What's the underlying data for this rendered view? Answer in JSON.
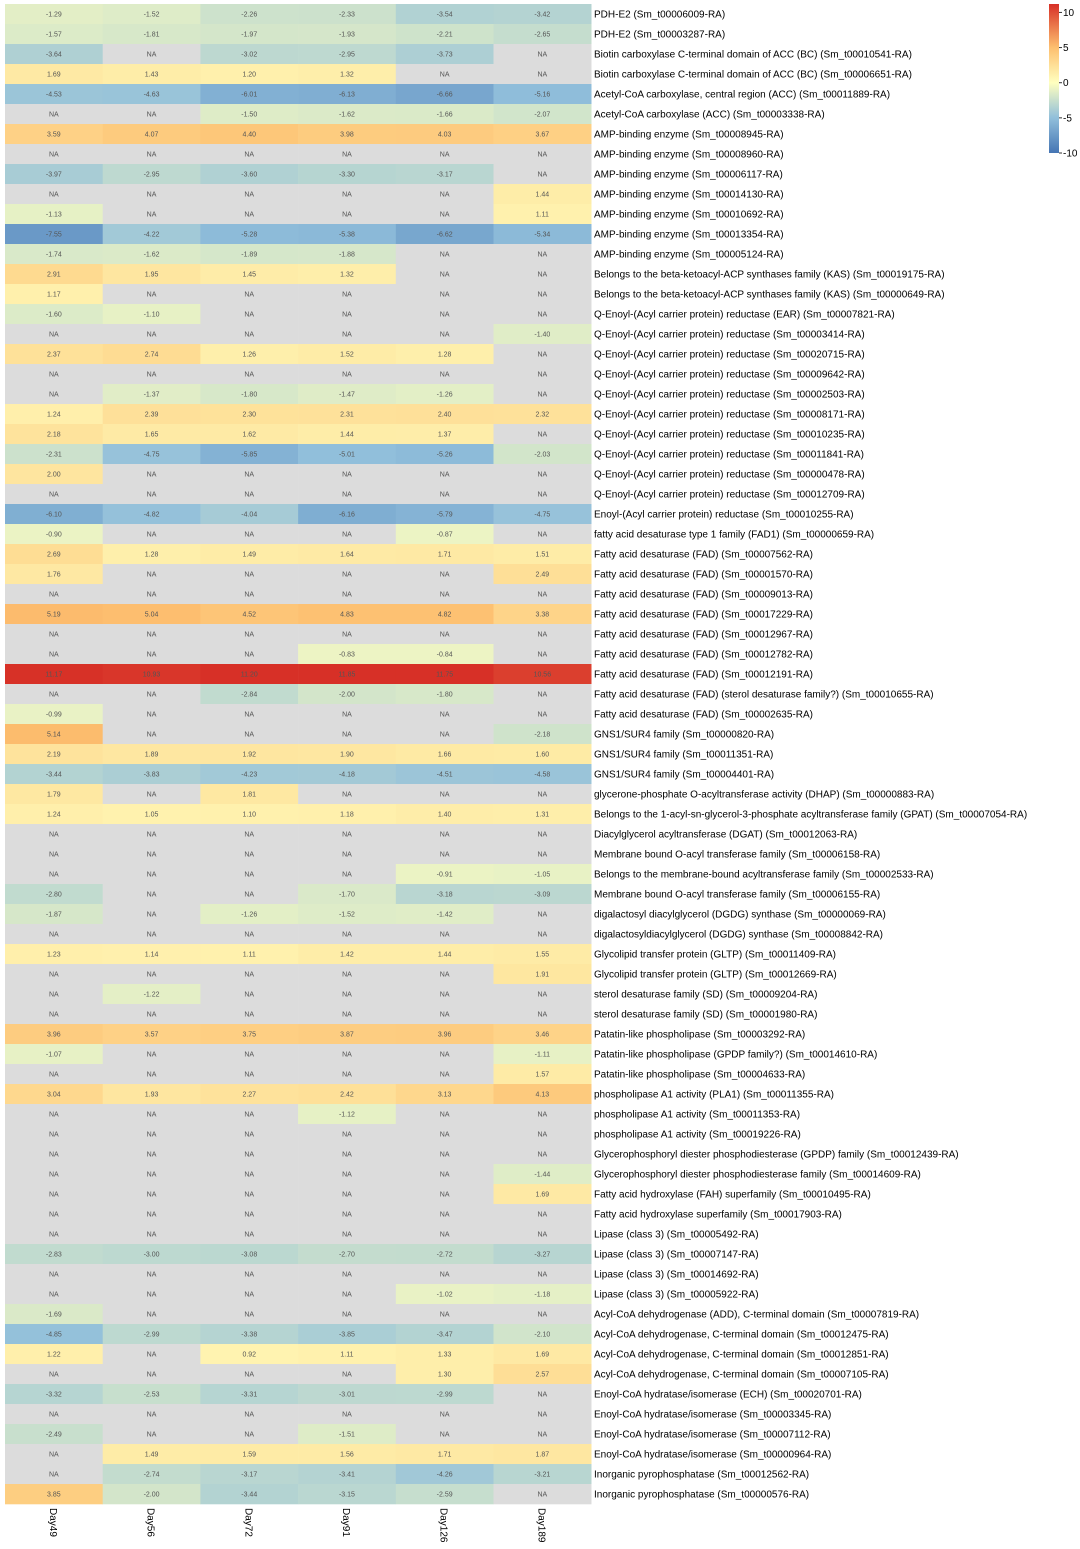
{
  "chart_data": {
    "type": "heatmap",
    "title": "",
    "xlabel": "",
    "ylabel": "",
    "columns": [
      "Day49",
      "Day56",
      "Day72",
      "Day91",
      "Day126",
      "Day189"
    ],
    "na_text": "NA",
    "na_color": "#dcdcdc",
    "color_scale": {
      "range": [
        -10,
        11.2
      ],
      "stops": [
        {
          "value": -10,
          "color": "#4575b4"
        },
        {
          "value": -5,
          "color": "#91bfdb"
        },
        {
          "value": 0,
          "color": "#ffffbf"
        },
        {
          "value": 5,
          "color": "#fdbf6f"
        },
        {
          "value": 11.2,
          "color": "#d73027"
        }
      ],
      "ticks": [
        "10",
        "5",
        "0",
        "-5",
        "-10"
      ]
    },
    "rows": [
      {
        "label": "PDH-E2 (Sm_t00006009-RA)",
        "values": [
          "-1.29",
          "-1.52",
          "-2.26",
          "-2.33",
          "-3.54",
          "-3.42"
        ]
      },
      {
        "label": "PDH-E2 (Sm_t00003287-RA)",
        "values": [
          "-1.57",
          "-1.81",
          "-1.97",
          "-1.93",
          "-2.21",
          "-2.65"
        ]
      },
      {
        "label": "Biotin carboxylase C-terminal domain of ACC (BC) (Sm_t00010541-RA)",
        "values": [
          "-3.64",
          "NA",
          "-3.02",
          "-2.95",
          "-3.73",
          "NA"
        ]
      },
      {
        "label": "Biotin carboxylase C-terminal domain of ACC (BC) (Sm_t00006651-RA)",
        "values": [
          "1.69",
          "1.43",
          "1.20",
          "1.32",
          "NA",
          "NA"
        ]
      },
      {
        "label": "Acetyl-CoA carboxylase, central region (ACC) (Sm_t00011889-RA)",
        "values": [
          "-4.53",
          "-4.63",
          "-6.01",
          "-6.13",
          "-6.66",
          "-5.16"
        ]
      },
      {
        "label": "Acetyl-CoA carboxylase (ACC) (Sm_t00003338-RA)",
        "values": [
          "NA",
          "NA",
          "-1.50",
          "-1.62",
          "-1.66",
          "-2.07"
        ]
      },
      {
        "label": "AMP-binding enzyme (Sm_t00008945-RA)",
        "values": [
          "3.59",
          "4.07",
          "4.40",
          "3.98",
          "4.03",
          "3.67"
        ]
      },
      {
        "label": "AMP-binding enzyme (Sm_t00008960-RA)",
        "values": [
          "NA",
          "NA",
          "NA",
          "NA",
          "NA",
          "NA"
        ]
      },
      {
        "label": "AMP-binding enzyme (Sm_t00006117-RA)",
        "values": [
          "-3.97",
          "-2.95",
          "-3.60",
          "-3.30",
          "-3.17",
          "NA"
        ]
      },
      {
        "label": "AMP-binding enzyme (Sm_t00014130-RA)",
        "values": [
          "NA",
          "NA",
          "NA",
          "NA",
          "NA",
          "1.44"
        ]
      },
      {
        "label": "AMP-binding enzyme (Sm_t00010692-RA)",
        "values": [
          "-1.13",
          "NA",
          "NA",
          "NA",
          "NA",
          "1.11"
        ]
      },
      {
        "label": "AMP-binding enzyme (Sm_t00013354-RA)",
        "values": [
          "-7.55",
          "-4.22",
          "-5.28",
          "-5.38",
          "-6.62",
          "-5.34"
        ]
      },
      {
        "label": "AMP-binding enzyme (Sm_t00005124-RA)",
        "values": [
          "-1.74",
          "-1.62",
          "-1.89",
          "-1.88",
          "NA",
          "NA"
        ]
      },
      {
        "label": "Belongs to the beta-ketoacyl-ACP synthases family (KAS) (Sm_t00019175-RA)",
        "values": [
          "2.91",
          "1.95",
          "1.45",
          "1.32",
          "NA",
          "NA"
        ]
      },
      {
        "label": "Belongs to the beta-ketoacyl-ACP synthases family (KAS) (Sm_t00000649-RA)",
        "values": [
          "1.17",
          "NA",
          "NA",
          "NA",
          "NA",
          "NA"
        ]
      },
      {
        "label": "Q-Enoyl-(Acyl carrier protein) reductase (EAR) (Sm_t00007821-RA)",
        "values": [
          "-1.60",
          "-1.10",
          "NA",
          "NA",
          "NA",
          "NA"
        ]
      },
      {
        "label": "Q-Enoyl-(Acyl carrier protein) reductase (Sm_t00003414-RA)",
        "values": [
          "NA",
          "NA",
          "NA",
          "NA",
          "NA",
          "-1.40"
        ]
      },
      {
        "label": "Q-Enoyl-(Acyl carrier protein) reductase (Sm_t00020715-RA)",
        "values": [
          "2.37",
          "2.74",
          "1.26",
          "1.52",
          "1.28",
          "NA"
        ]
      },
      {
        "label": "Q-Enoyl-(Acyl carrier protein) reductase (Sm_t00009642-RA)",
        "values": [
          "NA",
          "NA",
          "NA",
          "NA",
          "NA",
          "NA"
        ]
      },
      {
        "label": "Q-Enoyl-(Acyl carrier protein) reductase (Sm_t00002503-RA)",
        "values": [
          "NA",
          "-1.37",
          "-1.80",
          "-1.47",
          "-1.26",
          "NA"
        ]
      },
      {
        "label": "Q-Enoyl-(Acyl carrier protein) reductase (Sm_t00008171-RA)",
        "values": [
          "1.24",
          "2.39",
          "2.30",
          "2.31",
          "2.40",
          "2.32"
        ]
      },
      {
        "label": "Q-Enoyl-(Acyl carrier protein) reductase (Sm_t00010235-RA)",
        "values": [
          "2.18",
          "1.65",
          "1.62",
          "1.44",
          "1.37",
          "NA"
        ]
      },
      {
        "label": "Q-Enoyl-(Acyl carrier protein) reductase (Sm_t00011841-RA)",
        "values": [
          "-2.31",
          "-4.75",
          "-5.85",
          "-5.01",
          "-5.26",
          "-2.03"
        ]
      },
      {
        "label": "Q-Enoyl-(Acyl carrier protein) reductase (Sm_t00000478-RA)",
        "values": [
          "2.00",
          "NA",
          "NA",
          "NA",
          "NA",
          "NA"
        ]
      },
      {
        "label": "Q-Enoyl-(Acyl carrier protein) reductase (Sm_t00012709-RA)",
        "values": [
          "NA",
          "NA",
          "NA",
          "NA",
          "NA",
          "NA"
        ]
      },
      {
        "label": "Enoyl-(Acyl carrier protein) reductase (Sm_t00010255-RA)",
        "values": [
          "-6.10",
          "-4.82",
          "-4.04",
          "-6.16",
          "-5.79",
          "-4.75"
        ]
      },
      {
        "label": "fatty acid desaturase type 1 family (FAD1) (Sm_t00000659-RA)",
        "values": [
          "-0.90",
          "NA",
          "NA",
          "NA",
          "-0.87",
          "NA"
        ]
      },
      {
        "label": "Fatty acid desaturase (FAD) (Sm_t00007562-RA)",
        "values": [
          "2.69",
          "1.28",
          "1.49",
          "1.64",
          "1.71",
          "1.51"
        ]
      },
      {
        "label": "Fatty acid desaturase (FAD) (Sm_t00001570-RA)",
        "values": [
          "1.76",
          "NA",
          "NA",
          "NA",
          "NA",
          "2.49"
        ]
      },
      {
        "label": "Fatty acid desaturase (FAD) (Sm_t00009013-RA)",
        "values": [
          "NA",
          "NA",
          "NA",
          "NA",
          "NA",
          "NA"
        ]
      },
      {
        "label": "Fatty acid desaturase (FAD) (Sm_t00017229-RA)",
        "values": [
          "5.19",
          "5.04",
          "4.52",
          "4.83",
          "4.82",
          "3.38"
        ]
      },
      {
        "label": "Fatty acid desaturase (FAD) (Sm_t00012967-RA)",
        "values": [
          "NA",
          "NA",
          "NA",
          "NA",
          "NA",
          "NA"
        ]
      },
      {
        "label": "Fatty acid desaturase (FAD) (Sm_t00012782-RA)",
        "values": [
          "NA",
          "NA",
          "NA",
          "-0.83",
          "-0.84",
          "NA"
        ]
      },
      {
        "label": "Fatty acid desaturase (FAD) (Sm_t00012191-RA)",
        "values": [
          "11.17",
          "10.93",
          "11.20",
          "11.85",
          "11.75",
          "10.56"
        ]
      },
      {
        "label": "Fatty acid desaturase (FAD) (sterol desaturase family?) (Sm_t00010655-RA)",
        "values": [
          "NA",
          "NA",
          "-2.84",
          "-2.00",
          "-1.80",
          "NA"
        ]
      },
      {
        "label": "Fatty acid desaturase (FAD) (Sm_t00002635-RA)",
        "values": [
          "-0.99",
          "NA",
          "NA",
          "NA",
          "NA",
          "NA"
        ]
      },
      {
        "label": "GNS1/SUR4 family (Sm_t00000820-RA)",
        "values": [
          "5.14",
          "NA",
          "NA",
          "NA",
          "NA",
          "-2.18"
        ]
      },
      {
        "label": "GNS1/SUR4 family (Sm_t00011351-RA)",
        "values": [
          "2.19",
          "1.89",
          "1.92",
          "1.90",
          "1.66",
          "1.60"
        ]
      },
      {
        "label": "GNS1/SUR4 family (Sm_t00004401-RA)",
        "values": [
          "-3.44",
          "-3.83",
          "-4.23",
          "-4.18",
          "-4.51",
          "-4.58"
        ]
      },
      {
        "label": "glycerone-phosphate O-acyltransferase activity (DHAP) (Sm_t00000883-RA)",
        "values": [
          "1.79",
          "NA",
          "1.81",
          "NA",
          "NA",
          "NA"
        ]
      },
      {
        "label": "Belongs to the 1-acyl-sn-glycerol-3-phosphate acyltransferase family (GPAT) (Sm_t00007054-RA)",
        "values": [
          "1.24",
          "1.05",
          "1.10",
          "1.18",
          "1.40",
          "1.31"
        ]
      },
      {
        "label": "Diacylglycerol acyltransferase (DGAT) (Sm_t00012063-RA)",
        "values": [
          "NA",
          "NA",
          "NA",
          "NA",
          "NA",
          "NA"
        ]
      },
      {
        "label": "Membrane bound O-acyl transferase family (Sm_t00006158-RA)",
        "values": [
          "NA",
          "NA",
          "NA",
          "NA",
          "NA",
          "NA"
        ]
      },
      {
        "label": "Belongs to the membrane-bound acyltransferase family (Sm_t00002533-RA)",
        "values": [
          "NA",
          "NA",
          "NA",
          "NA",
          "-0.91",
          "-1.05"
        ]
      },
      {
        "label": "Membrane bound O-acyl transferase family (Sm_t00006155-RA)",
        "values": [
          "-2.80",
          "NA",
          "NA",
          "-1.70",
          "-3.18",
          "-3.09"
        ]
      },
      {
        "label": "digalactosyl diacylglycerol (DGDG) synthase (Sm_t00000069-RA)",
        "values": [
          "-1.87",
          "NA",
          "-1.26",
          "-1.52",
          "-1.42",
          "NA"
        ]
      },
      {
        "label": "digalactosyldiacylglycerol (DGDG) synthase (Sm_t00008842-RA)",
        "values": [
          "NA",
          "NA",
          "NA",
          "NA",
          "NA",
          "NA"
        ]
      },
      {
        "label": "Glycolipid transfer protein (GLTP) (Sm_t00011409-RA)",
        "values": [
          "1.23",
          "1.14",
          "1.11",
          "1.42",
          "1.44",
          "1.55"
        ]
      },
      {
        "label": "Glycolipid transfer protein (GLTP) (Sm_t00012669-RA)",
        "values": [
          "NA",
          "NA",
          "NA",
          "NA",
          "NA",
          "1.91"
        ]
      },
      {
        "label": "sterol desaturase family (SD) (Sm_t00009204-RA)",
        "values": [
          "NA",
          "-1.22",
          "NA",
          "NA",
          "NA",
          "NA"
        ]
      },
      {
        "label": "sterol desaturase family (SD) (Sm_t00001980-RA)",
        "values": [
          "NA",
          "NA",
          "NA",
          "NA",
          "NA",
          "NA"
        ]
      },
      {
        "label": "Patatin-like phospholipase (Sm_t00003292-RA)",
        "values": [
          "3.96",
          "3.57",
          "3.75",
          "3.87",
          "3.96",
          "3.46"
        ]
      },
      {
        "label": "Patatin-like phospholipase (GPDP family?) (Sm_t00014610-RA)",
        "values": [
          "-1.07",
          "NA",
          "NA",
          "NA",
          "NA",
          "-1.11"
        ]
      },
      {
        "label": "Patatin-like phospholipase (Sm_t00004633-RA)",
        "values": [
          "NA",
          "NA",
          "NA",
          "NA",
          "NA",
          "1.57"
        ]
      },
      {
        "label": "phospholipase A1 activity (PLA1) (Sm_t00011355-RA)",
        "values": [
          "3.04",
          "1.93",
          "2.27",
          "2.42",
          "3.13",
          "4.13"
        ]
      },
      {
        "label": "phospholipase A1 activity (Sm_t00011353-RA)",
        "values": [
          "NA",
          "NA",
          "NA",
          "-1.12",
          "NA",
          "NA"
        ]
      },
      {
        "label": "phospholipase A1 activity (Sm_t00019226-RA)",
        "values": [
          "NA",
          "NA",
          "NA",
          "NA",
          "NA",
          "NA"
        ]
      },
      {
        "label": "Glycerophosphoryl diester phosphodiesterase (GPDP) family (Sm_t00012439-RA)",
        "values": [
          "NA",
          "NA",
          "NA",
          "NA",
          "NA",
          "NA"
        ]
      },
      {
        "label": "Glycerophosphoryl diester phosphodiesterase family (Sm_t00014609-RA)",
        "values": [
          "NA",
          "NA",
          "NA",
          "NA",
          "NA",
          "-1.44"
        ]
      },
      {
        "label": "Fatty acid hydroxylase (FAH) superfamily (Sm_t00010495-RA)",
        "values": [
          "NA",
          "NA",
          "NA",
          "NA",
          "NA",
          "1.69"
        ]
      },
      {
        "label": "Fatty acid hydroxylase superfamily (Sm_t00017903-RA)",
        "values": [
          "NA",
          "NA",
          "NA",
          "NA",
          "NA",
          "NA"
        ]
      },
      {
        "label": "Lipase (class 3) (Sm_t00005492-RA)",
        "values": [
          "NA",
          "NA",
          "NA",
          "NA",
          "NA",
          "NA"
        ]
      },
      {
        "label": "Lipase (class 3) (Sm_t00007147-RA)",
        "values": [
          "-2.83",
          "-3.00",
          "-3.08",
          "-2.70",
          "-2.72",
          "-3.27"
        ]
      },
      {
        "label": "Lipase (class 3) (Sm_t00014692-RA)",
        "values": [
          "NA",
          "NA",
          "NA",
          "NA",
          "NA",
          "NA"
        ]
      },
      {
        "label": "Lipase (class 3) (Sm_t00005922-RA)",
        "values": [
          "NA",
          "NA",
          "NA",
          "NA",
          "-1.02",
          "-1.18"
        ]
      },
      {
        "label": "Acyl-CoA dehydrogenase (ADD), C-terminal domain (Sm_t00007819-RA)",
        "values": [
          "-1.69",
          "NA",
          "NA",
          "NA",
          "NA",
          "NA"
        ]
      },
      {
        "label": "Acyl-CoA dehydrogenase, C-terminal domain (Sm_t00012475-RA)",
        "values": [
          "-4.85",
          "-2.99",
          "-3.38",
          "-3.85",
          "-3.47",
          "-2.10"
        ]
      },
      {
        "label": "Acyl-CoA dehydrogenase, C-terminal domain (Sm_t00012851-RA)",
        "values": [
          "1.22",
          "NA",
          "0.92",
          "1.11",
          "1.33",
          "1.69"
        ]
      },
      {
        "label": "Acyl-CoA dehydrogenase, C-terminal domain (Sm_t00007105-RA)",
        "values": [
          "NA",
          "NA",
          "NA",
          "NA",
          "1.30",
          "2.57"
        ]
      },
      {
        "label": "Enoyl-CoA hydratase/isomerase (ECH) (Sm_t00020701-RA)",
        "values": [
          "-3.32",
          "-2.53",
          "-3.31",
          "-3.01",
          "-2.99",
          "NA"
        ]
      },
      {
        "label": "Enoyl-CoA hydratase/isomerase (Sm_t00003345-RA)",
        "values": [
          "NA",
          "NA",
          "NA",
          "NA",
          "NA",
          "NA"
        ]
      },
      {
        "label": "Enoyl-CoA hydratase/isomerase (Sm_t00007112-RA)",
        "values": [
          "-2.49",
          "NA",
          "NA",
          "-1.51",
          "NA",
          "NA"
        ]
      },
      {
        "label": "Enoyl-CoA hydratase/isomerase (Sm_t00000964-RA)",
        "values": [
          "NA",
          "1.49",
          "1.59",
          "1.56",
          "1.71",
          "1.87"
        ]
      },
      {
        "label": "Inorganic pyrophosphatase (Sm_t00012562-RA)",
        "values": [
          "NA",
          "-2.74",
          "-3.17",
          "-3.41",
          "-4.26",
          "-3.21"
        ]
      },
      {
        "label": "Inorganic pyrophosphatase (Sm_t00000576-RA)",
        "values": [
          "3.85",
          "-2.00",
          "-3.44",
          "-3.15",
          "-2.59",
          "NA"
        ]
      }
    ]
  }
}
